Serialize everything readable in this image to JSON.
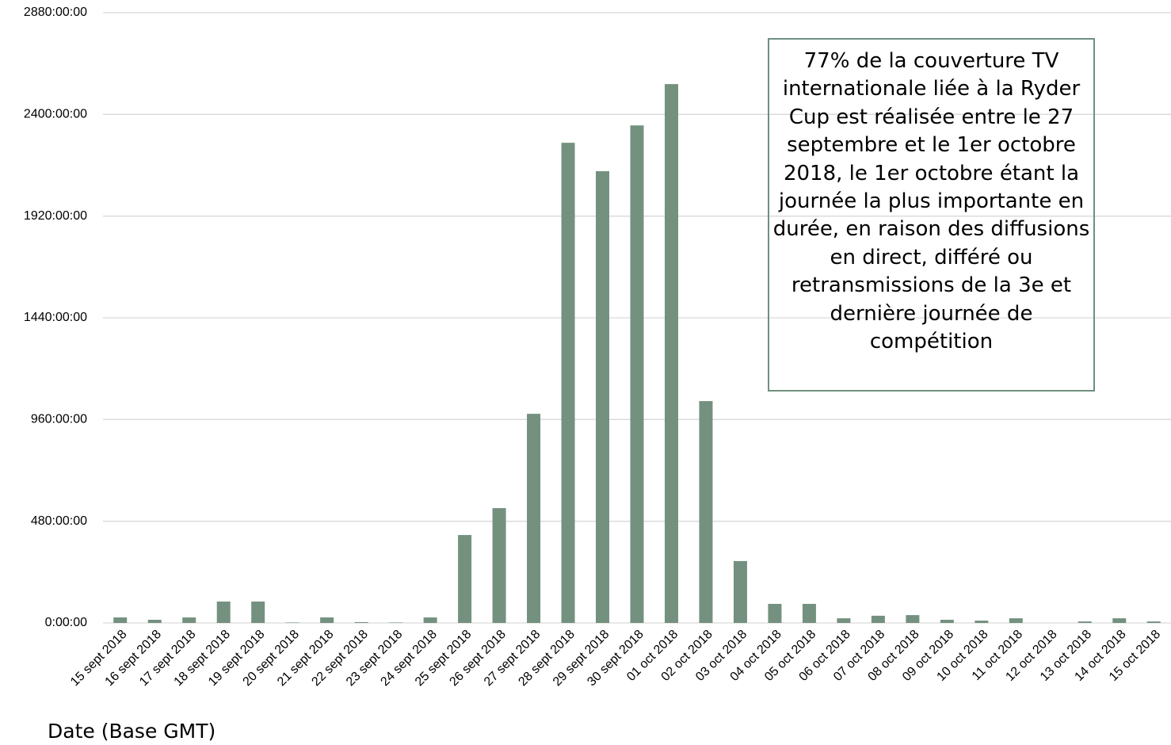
{
  "chart_data": {
    "type": "bar",
    "x_label": "Date (Base GMT)",
    "annotation": "77% de la couverture TV internationale liée à la Ryder Cup est réalisée entre le 27 septembre et le 1er octobre 2018, le 1er octobre étant la journée la plus importante en durée, en raison des diffusions en direct, différé ou retransmissions de la 3e et dernière journée de compétition",
    "categories": [
      "15 sept 2018",
      "16 sept 2018",
      "17 sept 2018",
      "18 sept 2018",
      "19 sept 2018",
      "20 sept 2018",
      "21 sept 2018",
      "22 sept 2018",
      "23 sept 2018",
      "24 sept 2018",
      "25 sept 2018",
      "26 sept 2018",
      "27 sept 2018",
      "28 sept 2018",
      "29 sept 2018",
      "30 sept 2018",
      "01 oct 2018",
      "02 oct 2018",
      "03 oct 2018",
      "04 oct 2018",
      "05 oct 2018",
      "06 oct 2018",
      "07 oct 2018",
      "08 oct 2018",
      "09 oct 2018",
      "10 oct 2018",
      "11 oct 2018",
      "12 oct 2018",
      "13 oct 2018",
      "14 oct 2018",
      "15 oct 2018"
    ],
    "values": [
      26,
      15,
      26,
      101,
      101,
      2,
      26,
      4,
      2,
      26,
      415,
      542,
      987,
      2266,
      2132,
      2348,
      2543,
      1047,
      292,
      90,
      90,
      22,
      34,
      37,
      15,
      11,
      22,
      0,
      7,
      22,
      7
    ],
    "color": "#74917f",
    "ylim": [
      0,
      2880
    ],
    "yticks": [
      {
        "value": 0,
        "label": "0:00:00"
      },
      {
        "value": 480,
        "label": "480:00:00"
      },
      {
        "value": 960,
        "label": "960:00:00"
      },
      {
        "value": 1440,
        "label": "1440:00:00"
      },
      {
        "value": 1920,
        "label": "1920:00:00"
      },
      {
        "value": 2400,
        "label": "2400:00:00"
      },
      {
        "value": 2880,
        "label": "2880:00:00"
      }
    ],
    "grid": true
  }
}
